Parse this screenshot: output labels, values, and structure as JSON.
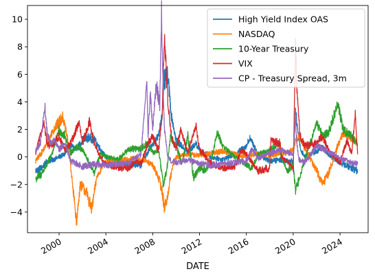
{
  "chart_data": {
    "type": "line",
    "title": "",
    "xlabel": "DATE",
    "ylabel": "",
    "xlim": [
      1997.3,
      2026.4
    ],
    "ylim": [
      -5.5,
      11.0
    ],
    "xticks": [
      2000,
      2004,
      2008,
      2012,
      2016,
      2020,
      2024
    ],
    "xtick_labels": [
      "2000",
      "2004",
      "2008",
      "2012",
      "2016",
      "2020",
      "2024"
    ],
    "yticks": [
      -4,
      -2,
      0,
      2,
      4,
      6,
      8,
      10
    ],
    "ytick_labels": [
      "−4",
      "−2",
      "0",
      "2",
      "4",
      "6",
      "8",
      "10"
    ],
    "grid": false,
    "legend_position": "top-right",
    "series": [
      {
        "name": "High Yield Index OAS",
        "color": "#1f77b4",
        "x": [
          1998.0,
          1998.5,
          1999.0,
          1999.5,
          2000.0,
          2000.5,
          2001.0,
          2001.5,
          2002.0,
          2002.5,
          2003.0,
          2003.5,
          2004.0,
          2005.0,
          2006.0,
          2007.0,
          2007.5,
          2008.0,
          2008.5,
          2008.8,
          2009.0,
          2009.3,
          2009.6,
          2010.0,
          2010.5,
          2011.0,
          2011.7,
          2012.0,
          2013.0,
          2014.0,
          2015.0,
          2016.0,
          2016.3,
          2017.0,
          2018.0,
          2019.0,
          2020.0,
          2020.2,
          2020.3,
          2020.6,
          2021.0,
          2022.0,
          2022.5,
          2023.0,
          2024.0,
          2025.0,
          2025.5
        ],
        "y": [
          -1.0,
          -0.8,
          -0.3,
          -0.2,
          0.0,
          0.2,
          0.8,
          0.6,
          1.2,
          1.4,
          1.3,
          0.6,
          0.0,
          -0.4,
          -0.5,
          -0.6,
          0.2,
          1.0,
          1.5,
          3.2,
          5.5,
          5.8,
          3.0,
          1.2,
          0.8,
          0.3,
          1.0,
          0.5,
          0.0,
          -0.2,
          0.2,
          0.8,
          1.4,
          0.2,
          -0.3,
          -0.2,
          -0.3,
          3.2,
          2.5,
          0.6,
          0.0,
          0.4,
          0.7,
          0.2,
          -0.4,
          -0.8,
          -1.0
        ]
      },
      {
        "name": "NASDAQ",
        "color": "#ff7f0e",
        "x": [
          1998.0,
          1998.5,
          1999.0,
          1999.5,
          2000.0,
          2000.3,
          2000.8,
          2001.2,
          2001.5,
          2001.8,
          2002.3,
          2002.8,
          2003.2,
          2003.8,
          2004.5,
          2005.5,
          2006.5,
          2007.5,
          2008.0,
          2008.5,
          2008.8,
          2009.0,
          2009.2,
          2009.6,
          2010.0,
          2011.0,
          2012.0,
          2013.0,
          2014.0,
          2015.0,
          2016.0,
          2017.0,
          2018.0,
          2019.0,
          2020.0,
          2020.2,
          2020.5,
          2021.0,
          2022.0,
          2022.5,
          2023.0,
          2023.8,
          2024.3,
          2025.0,
          2025.5
        ],
        "y": [
          -0.3,
          0.3,
          1.0,
          2.0,
          2.5,
          3.0,
          1.0,
          -2.5,
          -4.7,
          -2.0,
          -2.5,
          -3.8,
          -1.5,
          -0.5,
          -0.3,
          -0.2,
          -0.1,
          -0.3,
          -0.6,
          -1.5,
          -2.5,
          -3.7,
          -3.2,
          -1.0,
          0.0,
          0.2,
          0.1,
          0.3,
          0.4,
          0.2,
          0.0,
          0.3,
          0.1,
          0.2,
          0.5,
          1.2,
          1.5,
          0.6,
          -1.0,
          -2.0,
          -1.2,
          0.8,
          1.8,
          1.4,
          1.0
        ]
      },
      {
        "name": "10-Year Treasury",
        "color": "#2ca02c",
        "x": [
          1998.0,
          1998.5,
          1999.0,
          1999.5,
          2000.0,
          2000.5,
          2001.0,
          2001.5,
          2002.0,
          2002.5,
          2003.0,
          2003.5,
          2004.0,
          2005.0,
          2006.0,
          2007.0,
          2007.5,
          2008.0,
          2008.5,
          2008.9,
          2009.2,
          2009.5,
          2010.0,
          2010.5,
          2011.0,
          2011.5,
          2012.0,
          2012.5,
          2013.0,
          2013.5,
          2014.0,
          2015.0,
          2016.0,
          2016.5,
          2017.0,
          2018.0,
          2018.8,
          2019.0,
          2019.5,
          2020.0,
          2020.2,
          2020.5,
          2021.0,
          2022.0,
          2022.5,
          2023.0,
          2023.8,
          2024.3,
          2025.0,
          2025.5
        ],
        "y": [
          -1.6,
          -1.2,
          -0.5,
          0.5,
          2.0,
          1.5,
          0.3,
          0.8,
          0.5,
          -0.3,
          -1.2,
          0.2,
          0.0,
          -0.2,
          0.6,
          0.6,
          1.0,
          0.3,
          0.5,
          -2.0,
          -1.0,
          1.5,
          0.8,
          -0.5,
          1.5,
          -1.5,
          -0.8,
          -1.0,
          -0.3,
          1.8,
          0.8,
          0.0,
          -0.6,
          -0.8,
          0.2,
          0.5,
          1.0,
          0.0,
          -1.0,
          -0.6,
          -2.5,
          -1.6,
          -0.2,
          2.5,
          1.5,
          1.8,
          3.8,
          2.0,
          1.5,
          0.8
        ]
      },
      {
        "name": "VIX",
        "color": "#d62728",
        "x": [
          1998.0,
          1998.7,
          1999.0,
          1999.5,
          2000.0,
          2000.5,
          2001.0,
          2001.7,
          2002.0,
          2002.6,
          2003.0,
          2003.5,
          2004.0,
          2005.0,
          2006.0,
          2006.5,
          2007.0,
          2007.6,
          2008.0,
          2008.5,
          2008.8,
          2009.0,
          2009.3,
          2009.6,
          2010.0,
          2010.4,
          2011.0,
          2011.7,
          2012.0,
          2013.0,
          2014.0,
          2015.0,
          2015.6,
          2016.0,
          2017.0,
          2018.0,
          2018.1,
          2018.9,
          2019.0,
          2020.0,
          2020.2,
          2020.3,
          2020.6,
          2021.0,
          2022.0,
          2022.5,
          2023.0,
          2024.0,
          2024.6,
          2025.0,
          2025.3,
          2025.5
        ],
        "y": [
          0.3,
          2.5,
          0.8,
          1.0,
          1.5,
          0.5,
          1.0,
          2.5,
          1.0,
          2.6,
          1.0,
          0.0,
          -0.5,
          -0.8,
          -0.8,
          -0.3,
          -0.5,
          1.0,
          1.5,
          0.5,
          3.0,
          8.7,
          4.0,
          1.5,
          0.5,
          2.0,
          0.3,
          2.3,
          0.5,
          -0.5,
          -0.8,
          -0.7,
          0.5,
          0.2,
          -1.0,
          -0.8,
          1.2,
          1.0,
          0.0,
          -0.8,
          8.0,
          5.0,
          1.5,
          0.8,
          1.0,
          1.5,
          0.5,
          -0.4,
          1.2,
          0.2,
          3.2,
          0.2
        ]
      },
      {
        "name": "CP - Treasury Spread, 3m",
        "color": "#9467bd",
        "x": [
          1998.0,
          1998.4,
          1998.8,
          1999.0,
          1999.3,
          1999.6,
          2000.0,
          2000.5,
          2001.0,
          2001.5,
          2002.0,
          2003.0,
          2004.0,
          2005.0,
          2006.0,
          2007.0,
          2007.5,
          2007.6,
          2007.8,
          2008.0,
          2008.3,
          2008.6,
          2008.75,
          2008.85,
          2009.0,
          2009.3,
          2009.6,
          2010.0,
          2011.0,
          2012.0,
          2013.0,
          2014.0,
          2015.0,
          2016.0,
          2016.5,
          2017.0,
          2018.0,
          2019.0,
          2020.0,
          2020.2,
          2020.3,
          2020.5,
          2021.0,
          2022.0,
          2023.0,
          2024.0,
          2025.0,
          2025.5
        ],
        "y": [
          0.5,
          1.0,
          3.6,
          1.5,
          1.0,
          1.2,
          0.5,
          1.0,
          -0.3,
          -0.5,
          -0.7,
          -0.5,
          -0.6,
          -0.5,
          -0.4,
          0.2,
          5.6,
          1.5,
          4.6,
          2.0,
          5.3,
          4.0,
          10.5,
          6.0,
          2.0,
          0.0,
          -0.3,
          -0.4,
          -0.2,
          -0.5,
          -0.6,
          -0.5,
          -0.4,
          -0.3,
          0.6,
          -0.1,
          0.3,
          0.5,
          0.2,
          3.0,
          1.0,
          -0.2,
          -0.4,
          0.8,
          0.4,
          -0.1,
          -0.4,
          -0.5
        ]
      }
    ]
  }
}
